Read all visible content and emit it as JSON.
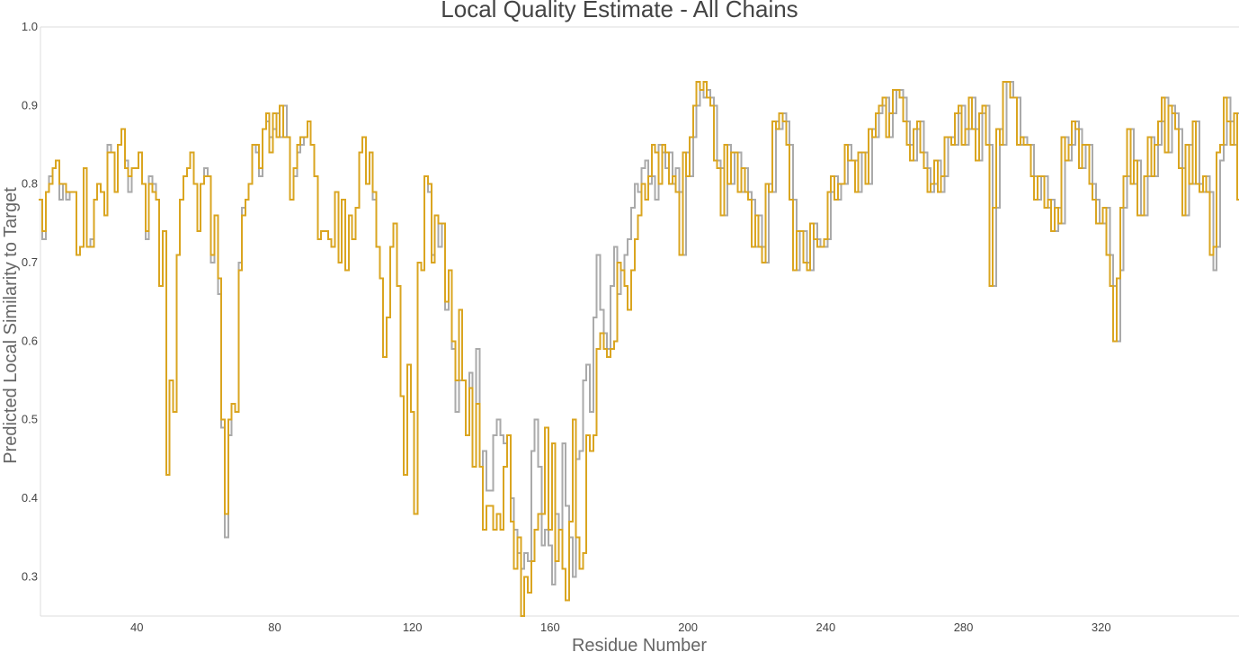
{
  "chart_data": {
    "type": "line",
    "step": true,
    "title": "Local Quality Estimate - All Chains",
    "xlabel": "Residue Number",
    "ylabel": "Predicted Local Similarity to Target",
    "xlim": [
      12,
      360
    ],
    "ylim": [
      0.25,
      1.0
    ],
    "xticks": [
      40,
      80,
      120,
      160,
      200,
      240,
      280,
      320
    ],
    "yticks": [
      0.3,
      0.4,
      0.5,
      0.6,
      0.7,
      0.8,
      0.9,
      1.0
    ],
    "grid": false,
    "legend": "none",
    "x_start": 12,
    "series": [
      {
        "color": "#aaaaaa",
        "values": [
          0.78,
          0.73,
          0.79,
          0.81,
          0.82,
          0.83,
          0.78,
          0.8,
          0.78,
          0.79,
          0.79,
          0.71,
          0.72,
          0.82,
          0.72,
          0.73,
          0.78,
          0.8,
          0.79,
          0.76,
          0.85,
          0.84,
          0.79,
          0.85,
          0.87,
          0.83,
          0.79,
          0.82,
          0.82,
          0.84,
          0.8,
          0.73,
          0.81,
          0.8,
          0.78,
          0.67,
          0.74,
          0.43,
          0.55,
          0.51,
          0.71,
          0.78,
          0.81,
          0.82,
          0.84,
          0.8,
          0.74,
          0.8,
          0.82,
          0.81,
          0.7,
          0.76,
          0.66,
          0.49,
          0.35,
          0.48,
          0.52,
          0.51,
          0.7,
          0.77,
          0.78,
          0.8,
          0.85,
          0.84,
          0.81,
          0.87,
          0.88,
          0.86,
          0.87,
          0.89,
          0.86,
          0.9,
          0.86,
          0.78,
          0.81,
          0.84,
          0.85,
          0.86,
          0.88,
          0.85,
          0.81,
          0.73,
          0.74,
          0.74,
          0.73,
          0.72,
          0.79,
          0.7,
          0.78,
          0.69,
          0.76,
          0.73,
          0.77,
          0.84,
          0.86,
          0.8,
          0.84,
          0.78,
          0.72,
          0.68,
          0.58,
          0.63,
          0.72,
          0.75,
          0.67,
          0.53,
          0.43,
          0.57,
          0.51,
          0.38,
          0.7,
          0.69,
          0.81,
          0.79,
          0.71,
          0.76,
          0.72,
          0.75,
          0.64,
          0.69,
          0.59,
          0.51,
          0.55,
          0.55,
          0.48,
          0.56,
          0.44,
          0.59,
          0.44,
          0.46,
          0.41,
          0.41,
          0.48,
          0.5,
          0.48,
          0.47,
          0.48,
          0.4,
          0.36,
          0.33,
          0.31,
          0.33,
          0.32,
          0.46,
          0.5,
          0.44,
          0.34,
          0.36,
          0.34,
          0.29,
          0.38,
          0.36,
          0.47,
          0.39,
          0.35,
          0.3,
          0.45,
          0.46,
          0.55,
          0.57,
          0.51,
          0.63,
          0.71,
          0.64,
          0.61,
          0.59,
          0.67,
          0.72,
          0.66,
          0.69,
          0.71,
          0.73,
          0.77,
          0.8,
          0.79,
          0.82,
          0.83,
          0.8,
          0.81,
          0.78,
          0.85,
          0.84,
          0.82,
          0.84,
          0.8,
          0.82,
          0.79,
          0.71,
          0.84,
          0.81,
          0.86,
          0.9,
          0.92,
          0.91,
          0.92,
          0.91,
          0.9,
          0.83,
          0.82,
          0.76,
          0.85,
          0.8,
          0.84,
          0.84,
          0.79,
          0.82,
          0.79,
          0.78,
          0.72,
          0.76,
          0.72,
          0.7,
          0.8,
          0.79,
          0.88,
          0.87,
          0.89,
          0.88,
          0.85,
          0.78,
          0.69,
          0.74,
          0.74,
          0.7,
          0.69,
          0.75,
          0.73,
          0.72,
          0.72,
          0.73,
          0.79,
          0.81,
          0.78,
          0.8,
          0.8,
          0.85,
          0.83,
          0.83,
          0.79,
          0.84,
          0.84,
          0.8,
          0.87,
          0.86,
          0.89,
          0.9,
          0.91,
          0.86,
          0.89,
          0.92,
          0.92,
          0.91,
          0.88,
          0.85,
          0.83,
          0.87,
          0.88,
          0.84,
          0.82,
          0.79,
          0.8,
          0.83,
          0.79,
          0.81,
          0.86,
          0.86,
          0.85,
          0.89,
          0.9,
          0.85,
          0.87,
          0.91,
          0.87,
          0.83,
          0.89,
          0.9,
          0.85,
          0.67,
          0.77,
          0.87,
          0.85,
          0.93,
          0.93,
          0.91,
          0.91,
          0.85,
          0.86,
          0.85,
          0.85,
          0.81,
          0.78,
          0.81,
          0.81,
          0.77,
          0.78,
          0.74,
          0.77,
          0.75,
          0.86,
          0.83,
          0.85,
          0.88,
          0.87,
          0.82,
          0.85,
          0.85,
          0.8,
          0.78,
          0.75,
          0.75,
          0.77,
          0.71,
          0.67,
          0.6,
          0.69,
          0.77,
          0.81,
          0.87,
          0.8,
          0.83,
          0.76,
          0.76,
          0.81,
          0.86,
          0.81,
          0.85,
          0.88,
          0.91,
          0.84,
          0.9,
          0.89,
          0.87,
          0.82,
          0.76,
          0.85,
          0.8,
          0.88,
          0.8,
          0.79,
          0.81,
          0.79,
          0.69,
          0.72,
          0.83,
          0.85,
          0.91,
          0.88,
          0.85,
          0.89,
          0.77,
          0.73
        ]
      },
      {
        "color": "#daa520",
        "values": [
          0.78,
          0.74,
          0.79,
          0.8,
          0.82,
          0.83,
          0.8,
          0.8,
          0.79,
          0.79,
          0.79,
          0.71,
          0.72,
          0.82,
          0.72,
          0.72,
          0.78,
          0.8,
          0.79,
          0.76,
          0.84,
          0.84,
          0.79,
          0.85,
          0.87,
          0.82,
          0.81,
          0.82,
          0.82,
          0.84,
          0.8,
          0.74,
          0.8,
          0.79,
          0.78,
          0.67,
          0.74,
          0.43,
          0.55,
          0.51,
          0.71,
          0.78,
          0.81,
          0.82,
          0.84,
          0.8,
          0.74,
          0.8,
          0.81,
          0.81,
          0.71,
          0.76,
          0.68,
          0.5,
          0.38,
          0.5,
          0.52,
          0.51,
          0.69,
          0.76,
          0.78,
          0.8,
          0.85,
          0.85,
          0.82,
          0.87,
          0.89,
          0.84,
          0.89,
          0.86,
          0.9,
          0.86,
          0.86,
          0.78,
          0.82,
          0.85,
          0.86,
          0.86,
          0.88,
          0.85,
          0.81,
          0.73,
          0.74,
          0.74,
          0.73,
          0.72,
          0.79,
          0.7,
          0.78,
          0.69,
          0.76,
          0.73,
          0.77,
          0.84,
          0.86,
          0.8,
          0.84,
          0.79,
          0.72,
          0.68,
          0.58,
          0.63,
          0.72,
          0.75,
          0.67,
          0.53,
          0.43,
          0.57,
          0.51,
          0.38,
          0.7,
          0.69,
          0.81,
          0.8,
          0.7,
          0.76,
          0.75,
          0.75,
          0.65,
          0.69,
          0.6,
          0.55,
          0.64,
          0.55,
          0.48,
          0.54,
          0.44,
          0.52,
          0.44,
          0.36,
          0.39,
          0.39,
          0.36,
          0.38,
          0.36,
          0.44,
          0.48,
          0.37,
          0.31,
          0.35,
          0.25,
          0.3,
          0.28,
          0.32,
          0.36,
          0.38,
          0.38,
          0.49,
          0.36,
          0.47,
          0.32,
          0.36,
          0.31,
          0.27,
          0.37,
          0.5,
          0.35,
          0.31,
          0.33,
          0.48,
          0.46,
          0.48,
          0.59,
          0.61,
          0.59,
          0.58,
          0.59,
          0.6,
          0.7,
          0.69,
          0.67,
          0.64,
          0.69,
          0.73,
          0.76,
          0.8,
          0.78,
          0.81,
          0.85,
          0.84,
          0.8,
          0.85,
          0.84,
          0.8,
          0.81,
          0.79,
          0.71,
          0.84,
          0.81,
          0.86,
          0.9,
          0.93,
          0.92,
          0.93,
          0.91,
          0.9,
          0.83,
          0.82,
          0.76,
          0.85,
          0.8,
          0.84,
          0.84,
          0.79,
          0.82,
          0.79,
          0.78,
          0.72,
          0.76,
          0.72,
          0.7,
          0.8,
          0.79,
          0.88,
          0.87,
          0.89,
          0.88,
          0.85,
          0.78,
          0.69,
          0.74,
          0.74,
          0.7,
          0.69,
          0.75,
          0.73,
          0.72,
          0.72,
          0.73,
          0.79,
          0.81,
          0.78,
          0.8,
          0.8,
          0.85,
          0.83,
          0.83,
          0.79,
          0.84,
          0.84,
          0.8,
          0.87,
          0.86,
          0.89,
          0.9,
          0.91,
          0.86,
          0.89,
          0.92,
          0.92,
          0.91,
          0.88,
          0.85,
          0.83,
          0.87,
          0.88,
          0.84,
          0.82,
          0.79,
          0.8,
          0.83,
          0.79,
          0.81,
          0.86,
          0.86,
          0.85,
          0.89,
          0.9,
          0.85,
          0.87,
          0.91,
          0.87,
          0.83,
          0.89,
          0.9,
          0.85,
          0.67,
          0.77,
          0.87,
          0.85,
          0.93,
          0.93,
          0.91,
          0.91,
          0.85,
          0.86,
          0.85,
          0.85,
          0.81,
          0.78,
          0.81,
          0.81,
          0.77,
          0.78,
          0.74,
          0.77,
          0.75,
          0.86,
          0.83,
          0.85,
          0.88,
          0.87,
          0.82,
          0.85,
          0.85,
          0.8,
          0.78,
          0.75,
          0.75,
          0.77,
          0.71,
          0.67,
          0.6,
          0.68,
          0.77,
          0.81,
          0.87,
          0.8,
          0.83,
          0.76,
          0.76,
          0.81,
          0.86,
          0.81,
          0.85,
          0.88,
          0.91,
          0.84,
          0.9,
          0.89,
          0.87,
          0.82,
          0.76,
          0.85,
          0.8,
          0.88,
          0.8,
          0.79,
          0.81,
          0.79,
          0.71,
          0.72,
          0.84,
          0.85,
          0.91,
          0.88,
          0.85,
          0.89,
          0.78,
          0.73
        ]
      }
    ]
  }
}
